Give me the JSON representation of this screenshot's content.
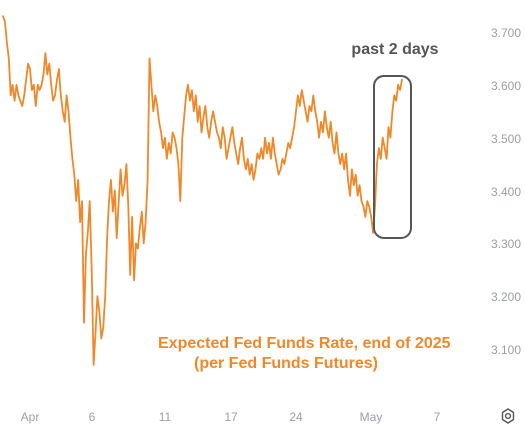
{
  "colors": {
    "line": "#f0882a",
    "axis_text": "#9aa0a6",
    "annotation_text": "#555555",
    "highlight_box": "#555555",
    "background": "#ffffff"
  },
  "icons": {
    "settings": "gear-icon"
  },
  "chart_data": {
    "type": "line",
    "annotation": "past 2 days",
    "caption": {
      "line1": "Expected Fed Funds Rate, end of 2025",
      "line2": "(per Fed Funds Futures)"
    },
    "x_tick_labels": [
      "Apr",
      "6",
      "11",
      "17",
      "24",
      "May",
      "7"
    ],
    "y_tick_labels": [
      "3.700",
      "3.600",
      "3.500",
      "3.400",
      "3.300",
      "3.200",
      "3.100"
    ],
    "ylim": [
      3.04,
      3.75
    ],
    "y_ticks": [
      3.7,
      3.6,
      3.5,
      3.4,
      3.3,
      3.2,
      3.1
    ],
    "grid": false,
    "legend": "none",
    "series": [
      {
        "values": [
          3.73,
          3.72,
          3.68,
          3.65,
          3.58,
          3.6,
          3.57,
          3.6,
          3.58,
          3.57,
          3.56,
          3.58,
          3.61,
          3.64,
          3.63,
          3.59,
          3.6,
          3.56,
          3.6,
          3.59,
          3.6,
          3.62,
          3.66,
          3.62,
          3.64,
          3.6,
          3.57,
          3.58,
          3.61,
          3.63,
          3.58,
          3.55,
          3.53,
          3.58,
          3.55,
          3.5,
          3.46,
          3.43,
          3.38,
          3.42,
          3.34,
          3.38,
          3.15,
          3.28,
          3.32,
          3.38,
          3.25,
          3.07,
          3.13,
          3.2,
          3.17,
          3.12,
          3.14,
          3.2,
          3.31,
          3.38,
          3.42,
          3.36,
          3.4,
          3.31,
          3.38,
          3.44,
          3.39,
          3.41,
          3.45,
          3.37,
          3.24,
          3.35,
          3.23,
          3.3,
          3.29,
          3.33,
          3.36,
          3.3,
          3.34,
          3.42,
          3.65,
          3.6,
          3.55,
          3.58,
          3.56,
          3.53,
          3.51,
          3.48,
          3.5,
          3.46,
          3.49,
          3.47,
          3.51,
          3.5,
          3.48,
          3.45,
          3.38,
          3.5,
          3.54,
          3.58,
          3.6,
          3.57,
          3.59,
          3.55,
          3.58,
          3.53,
          3.56,
          3.51,
          3.54,
          3.56,
          3.52,
          3.5,
          3.53,
          3.55,
          3.53,
          3.51,
          3.5,
          3.48,
          3.52,
          3.5,
          3.46,
          3.48,
          3.5,
          3.52,
          3.49,
          3.47,
          3.45,
          3.48,
          3.5,
          3.46,
          3.44,
          3.46,
          3.43,
          3.45,
          3.42,
          3.44,
          3.47,
          3.46,
          3.48,
          3.46,
          3.5,
          3.47,
          3.49,
          3.46,
          3.5,
          3.47,
          3.45,
          3.43,
          3.44,
          3.46,
          3.45,
          3.47,
          3.49,
          3.48,
          3.5,
          3.52,
          3.55,
          3.58,
          3.56,
          3.59,
          3.57,
          3.55,
          3.53,
          3.56,
          3.55,
          3.58,
          3.55,
          3.53,
          3.5,
          3.53,
          3.51,
          3.55,
          3.52,
          3.5,
          3.53,
          3.49,
          3.47,
          3.51,
          3.47,
          3.45,
          3.47,
          3.44,
          3.47,
          3.42,
          3.39,
          3.44,
          3.41,
          3.43,
          3.39,
          3.41,
          3.38,
          3.37,
          3.35,
          3.38,
          3.37,
          3.35,
          3.32,
          3.37,
          3.45,
          3.48,
          3.46,
          3.5,
          3.48,
          3.46,
          3.52,
          3.5,
          3.55,
          3.58,
          3.57,
          3.6,
          3.59,
          3.61
        ]
      }
    ]
  }
}
